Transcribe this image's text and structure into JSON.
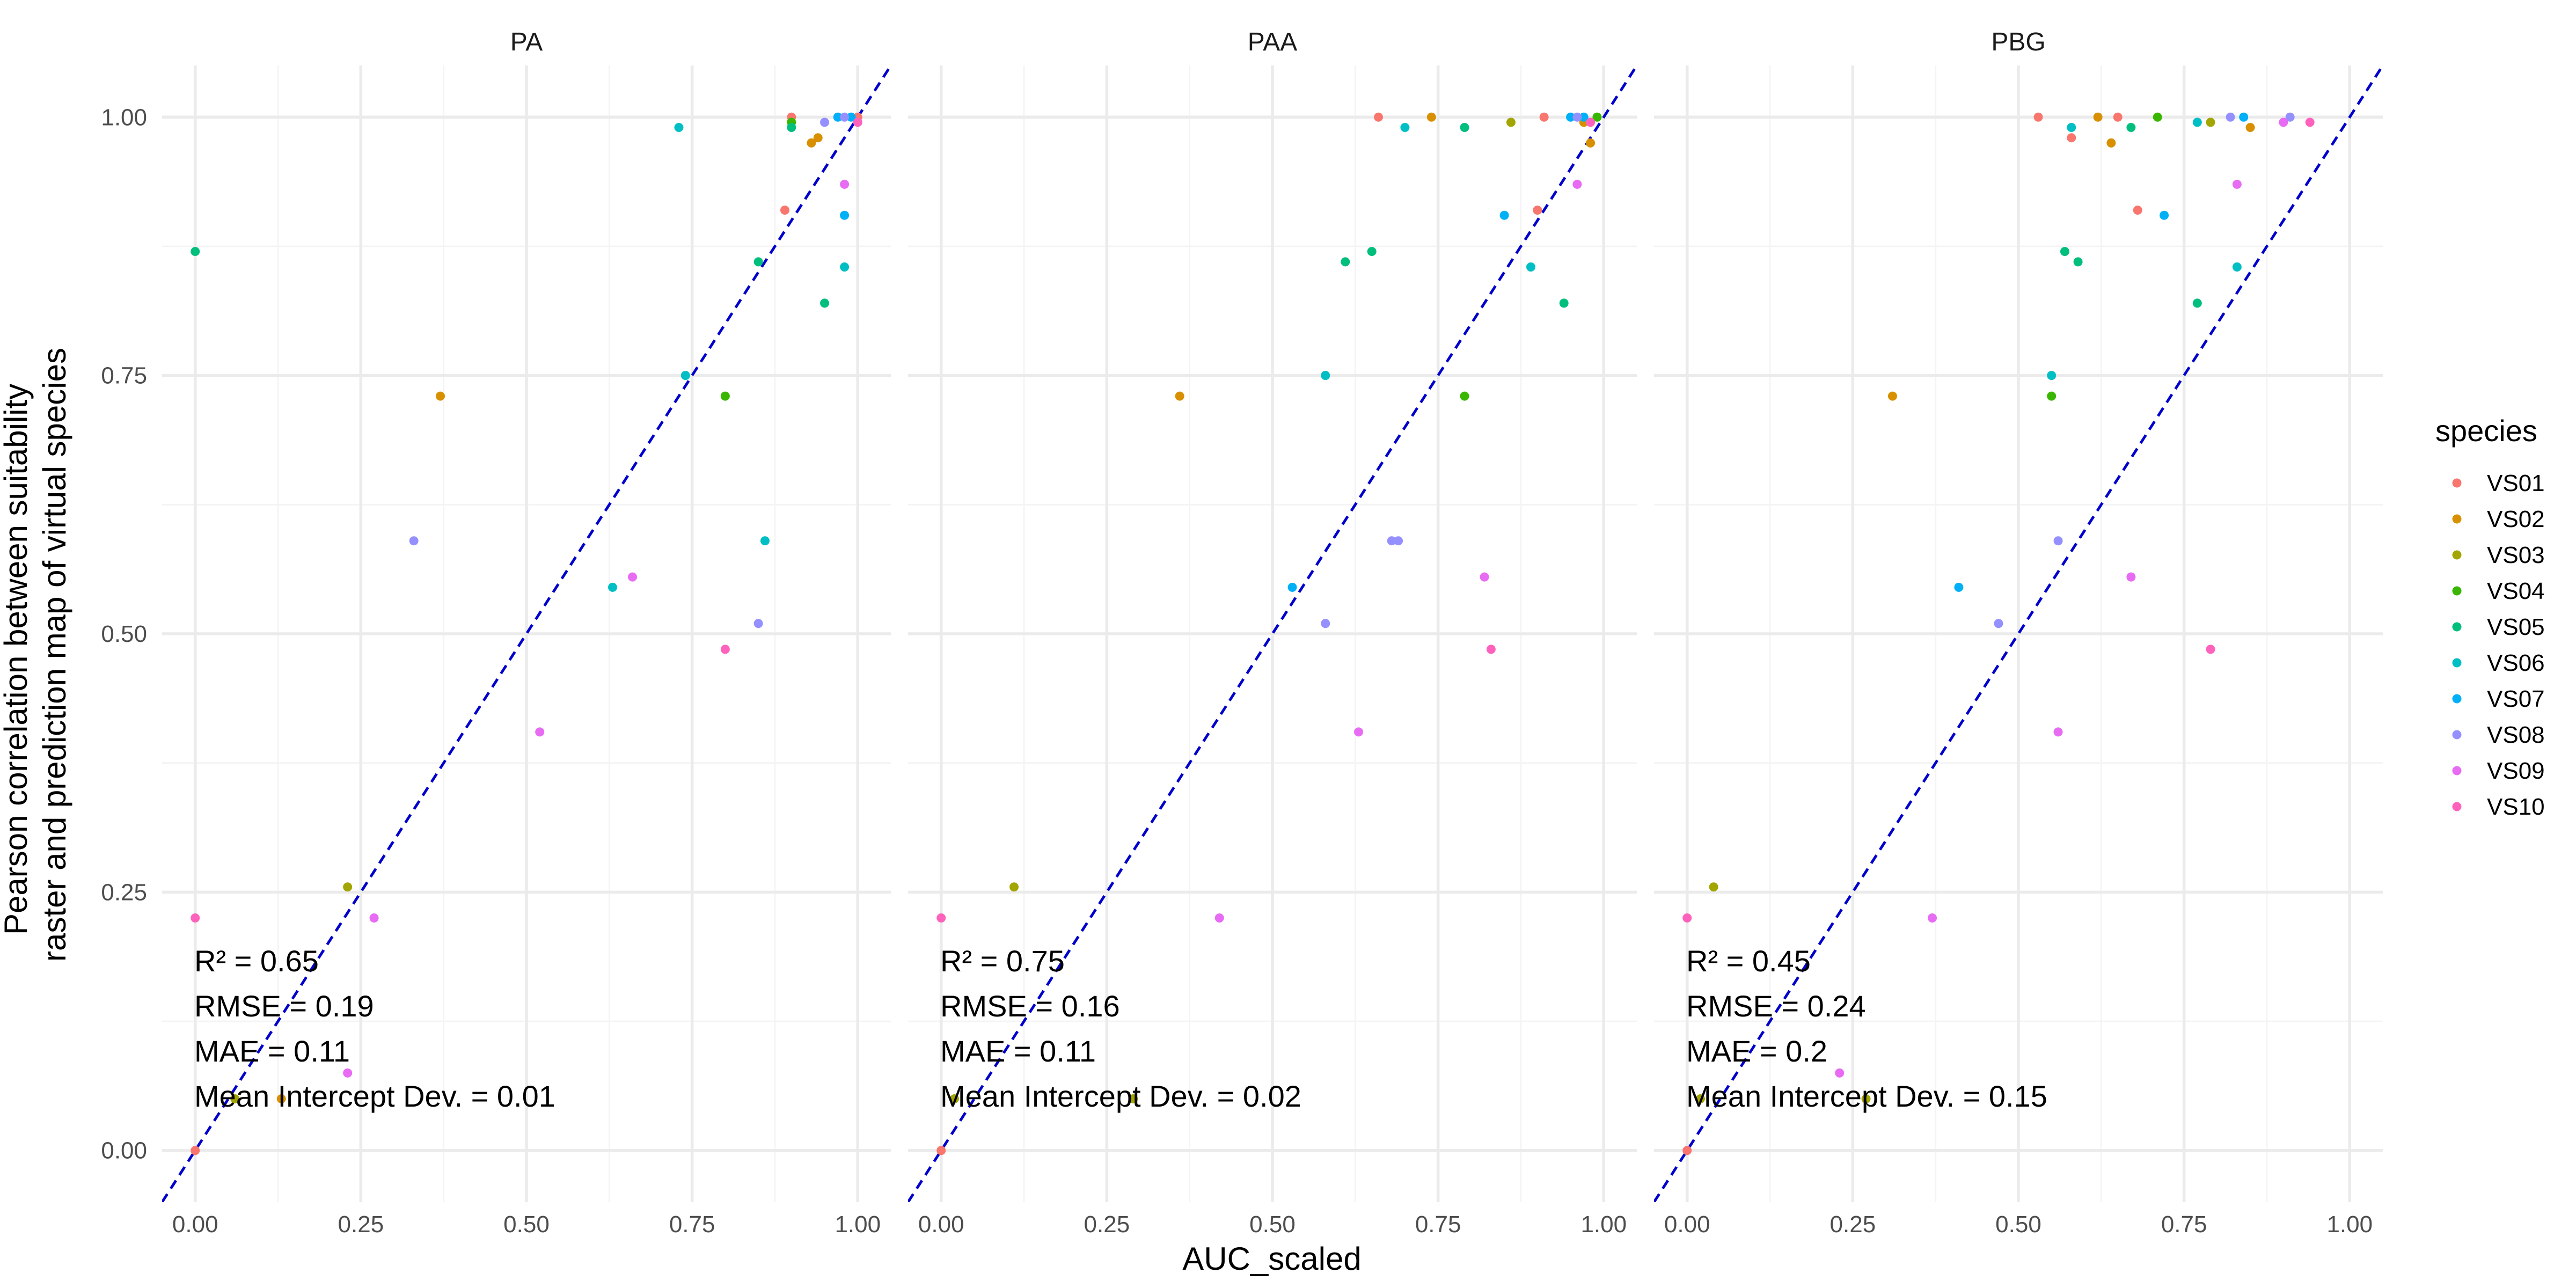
{
  "chart_data": {
    "type": "scatter",
    "xlabel": "AUC_scaled",
    "ylabel": [
      "Pearson correlation between suitability",
      "raster and prediction map of virtual species"
    ],
    "xlim": [
      -0.05,
      1.05
    ],
    "ylim": [
      -0.05,
      1.05
    ],
    "x_ticks": [
      "0.00",
      "0.25",
      "0.50",
      "0.75",
      "1.00"
    ],
    "y_ticks": [
      "0.00",
      "0.25",
      "0.50",
      "0.75",
      "1.00"
    ],
    "grid": true,
    "reference_line": "y = x",
    "legend": {
      "title": "species",
      "placement": "right",
      "entries": [
        {
          "name": "VS01",
          "color": "#F8766D"
        },
        {
          "name": "VS02",
          "color": "#D89000"
        },
        {
          "name": "VS03",
          "color": "#A3A500"
        },
        {
          "name": "VS04",
          "color": "#39B600"
        },
        {
          "name": "VS05",
          "color": "#00BF7D"
        },
        {
          "name": "VS06",
          "color": "#00BFC4"
        },
        {
          "name": "VS07",
          "color": "#00B0F6"
        },
        {
          "name": "VS08",
          "color": "#9590FF"
        },
        {
          "name": "VS09",
          "color": "#E76BF3"
        },
        {
          "name": "VS10",
          "color": "#FF62BC"
        }
      ]
    },
    "panels": [
      {
        "label": "PA",
        "stats": [
          "R² = 0.65",
          "RMSE = 0.19",
          "MAE = 0.11",
          "Mean Intercept Dev. = 0.01"
        ],
        "points": [
          {
            "s": "VS01",
            "x": 0.0,
            "y": 0.0
          },
          {
            "s": "VS01",
            "x": 0.89,
            "y": 0.91
          },
          {
            "s": "VS01",
            "x": 0.9,
            "y": 1.0
          },
          {
            "s": "VS01",
            "x": 1.0,
            "y": 1.0
          },
          {
            "s": "VS02",
            "x": 0.37,
            "y": 0.73
          },
          {
            "s": "VS02",
            "x": 0.13,
            "y": 0.05
          },
          {
            "s": "VS02",
            "x": 0.93,
            "y": 0.975
          },
          {
            "s": "VS02",
            "x": 0.94,
            "y": 0.98
          },
          {
            "s": "VS03",
            "x": 0.23,
            "y": 0.255
          },
          {
            "s": "VS03",
            "x": 0.06,
            "y": 0.05
          },
          {
            "s": "VS04",
            "x": 0.8,
            "y": 0.73
          },
          {
            "s": "VS04",
            "x": 0.9,
            "y": 0.995
          },
          {
            "s": "VS05",
            "x": 0.0,
            "y": 0.87
          },
          {
            "s": "VS05",
            "x": 0.85,
            "y": 0.86
          },
          {
            "s": "VS05",
            "x": 0.95,
            "y": 0.82
          },
          {
            "s": "VS05",
            "x": 0.9,
            "y": 0.99
          },
          {
            "s": "VS06",
            "x": 0.73,
            "y": 0.99
          },
          {
            "s": "VS06",
            "x": 0.74,
            "y": 0.75
          },
          {
            "s": "VS06",
            "x": 0.63,
            "y": 0.545
          },
          {
            "s": "VS06",
            "x": 0.86,
            "y": 0.59
          },
          {
            "s": "VS06",
            "x": 0.98,
            "y": 0.855
          },
          {
            "s": "VS07",
            "x": 0.98,
            "y": 0.905
          },
          {
            "s": "VS07",
            "x": 0.97,
            "y": 1.0
          },
          {
            "s": "VS07",
            "x": 0.99,
            "y": 1.0
          },
          {
            "s": "VS08",
            "x": 0.33,
            "y": 0.59
          },
          {
            "s": "VS08",
            "x": 0.85,
            "y": 0.51
          },
          {
            "s": "VS08",
            "x": 0.95,
            "y": 0.995
          },
          {
            "s": "VS08",
            "x": 0.98,
            "y": 1.0
          },
          {
            "s": "VS09",
            "x": 0.66,
            "y": 0.555
          },
          {
            "s": "VS09",
            "x": 0.52,
            "y": 0.405
          },
          {
            "s": "VS09",
            "x": 0.98,
            "y": 0.935
          },
          {
            "s": "VS09",
            "x": 0.27,
            "y": 0.225
          },
          {
            "s": "VS09",
            "x": 0.23,
            "y": 0.075
          },
          {
            "s": "VS10",
            "x": 0.0,
            "y": 0.225
          },
          {
            "s": "VS10",
            "x": 0.8,
            "y": 0.485
          },
          {
            "s": "VS10",
            "x": 1.0,
            "y": 0.995
          }
        ]
      },
      {
        "label": "PAA",
        "stats": [
          "R² = 0.75",
          "RMSE = 0.16",
          "MAE = 0.11",
          "Mean Intercept Dev. = 0.02"
        ],
        "points": [
          {
            "s": "VS01",
            "x": 0.0,
            "y": 0.0
          },
          {
            "s": "VS01",
            "x": 0.66,
            "y": 1.0
          },
          {
            "s": "VS01",
            "x": 0.9,
            "y": 0.91
          },
          {
            "s": "VS01",
            "x": 0.91,
            "y": 1.0
          },
          {
            "s": "VS02",
            "x": 0.36,
            "y": 0.73
          },
          {
            "s": "VS02",
            "x": 0.74,
            "y": 1.0
          },
          {
            "s": "VS02",
            "x": 0.98,
            "y": 0.975
          },
          {
            "s": "VS02",
            "x": 0.97,
            "y": 0.995
          },
          {
            "s": "VS03",
            "x": 0.11,
            "y": 0.255
          },
          {
            "s": "VS03",
            "x": 0.02,
            "y": 0.05
          },
          {
            "s": "VS03",
            "x": 0.29,
            "y": 0.05
          },
          {
            "s": "VS03",
            "x": 0.86,
            "y": 0.995
          },
          {
            "s": "VS04",
            "x": 0.79,
            "y": 0.73
          },
          {
            "s": "VS04",
            "x": 0.99,
            "y": 1.0
          },
          {
            "s": "VS05",
            "x": 0.61,
            "y": 0.86
          },
          {
            "s": "VS05",
            "x": 0.65,
            "y": 0.87
          },
          {
            "s": "VS05",
            "x": 0.94,
            "y": 0.82
          },
          {
            "s": "VS05",
            "x": 0.79,
            "y": 0.99
          },
          {
            "s": "VS06",
            "x": 0.7,
            "y": 0.99
          },
          {
            "s": "VS06",
            "x": 0.58,
            "y": 0.75
          },
          {
            "s": "VS06",
            "x": 0.89,
            "y": 0.855
          },
          {
            "s": "VS07",
            "x": 0.53,
            "y": 0.545
          },
          {
            "s": "VS07",
            "x": 0.85,
            "y": 0.905
          },
          {
            "s": "VS07",
            "x": 0.95,
            "y": 1.0
          },
          {
            "s": "VS07",
            "x": 0.97,
            "y": 1.0
          },
          {
            "s": "VS08",
            "x": 0.58,
            "y": 0.51
          },
          {
            "s": "VS08",
            "x": 0.68,
            "y": 0.59
          },
          {
            "s": "VS08",
            "x": 0.69,
            "y": 0.59
          },
          {
            "s": "VS08",
            "x": 0.96,
            "y": 1.0
          },
          {
            "s": "VS09",
            "x": 0.82,
            "y": 0.555
          },
          {
            "s": "VS09",
            "x": 0.63,
            "y": 0.405
          },
          {
            "s": "VS09",
            "x": 0.96,
            "y": 0.935
          },
          {
            "s": "VS09",
            "x": 0.42,
            "y": 0.225
          },
          {
            "s": "VS10",
            "x": 0.0,
            "y": 0.225
          },
          {
            "s": "VS10",
            "x": 0.83,
            "y": 0.485
          },
          {
            "s": "VS10",
            "x": 0.98,
            "y": 0.995
          }
        ]
      },
      {
        "label": "PBG",
        "stats": [
          "R² = 0.45",
          "RMSE = 0.24",
          "MAE = 0.2",
          "Mean Intercept Dev. = 0.15"
        ],
        "points": [
          {
            "s": "VS01",
            "x": 0.0,
            "y": 0.0
          },
          {
            "s": "VS01",
            "x": 0.53,
            "y": 1.0
          },
          {
            "s": "VS01",
            "x": 0.58,
            "y": 0.98
          },
          {
            "s": "VS01",
            "x": 0.68,
            "y": 0.91
          },
          {
            "s": "VS01",
            "x": 0.65,
            "y": 1.0
          },
          {
            "s": "VS02",
            "x": 0.31,
            "y": 0.73
          },
          {
            "s": "VS02",
            "x": 0.62,
            "y": 1.0
          },
          {
            "s": "VS02",
            "x": 0.64,
            "y": 0.975
          },
          {
            "s": "VS02",
            "x": 0.85,
            "y": 0.99
          },
          {
            "s": "VS03",
            "x": 0.04,
            "y": 0.255
          },
          {
            "s": "VS03",
            "x": 0.02,
            "y": 0.05
          },
          {
            "s": "VS03",
            "x": 0.27,
            "y": 0.05
          },
          {
            "s": "VS03",
            "x": 0.79,
            "y": 0.995
          },
          {
            "s": "VS04",
            "x": 0.55,
            "y": 0.73
          },
          {
            "s": "VS04",
            "x": 0.71,
            "y": 1.0
          },
          {
            "s": "VS05",
            "x": 0.57,
            "y": 0.87
          },
          {
            "s": "VS05",
            "x": 0.59,
            "y": 0.86
          },
          {
            "s": "VS05",
            "x": 0.77,
            "y": 0.82
          },
          {
            "s": "VS05",
            "x": 0.67,
            "y": 0.99
          },
          {
            "s": "VS06",
            "x": 0.58,
            "y": 0.99
          },
          {
            "s": "VS06",
            "x": 0.55,
            "y": 0.75
          },
          {
            "s": "VS06",
            "x": 0.83,
            "y": 0.855
          },
          {
            "s": "VS06",
            "x": 0.77,
            "y": 0.995
          },
          {
            "s": "VS07",
            "x": 0.41,
            "y": 0.545
          },
          {
            "s": "VS07",
            "x": 0.72,
            "y": 0.905
          },
          {
            "s": "VS07",
            "x": 0.84,
            "y": 1.0
          },
          {
            "s": "VS08",
            "x": 0.47,
            "y": 0.51
          },
          {
            "s": "VS08",
            "x": 0.56,
            "y": 0.59
          },
          {
            "s": "VS08",
            "x": 0.82,
            "y": 1.0
          },
          {
            "s": "VS08",
            "x": 0.91,
            "y": 1.0
          },
          {
            "s": "VS09",
            "x": 0.67,
            "y": 0.555
          },
          {
            "s": "VS09",
            "x": 0.56,
            "y": 0.405
          },
          {
            "s": "VS09",
            "x": 0.83,
            "y": 0.935
          },
          {
            "s": "VS09",
            "x": 0.37,
            "y": 0.225
          },
          {
            "s": "VS09",
            "x": 0.23,
            "y": 0.075
          },
          {
            "s": "VS09",
            "x": 0.9,
            "y": 0.995
          },
          {
            "s": "VS10",
            "x": 0.0,
            "y": 0.225
          },
          {
            "s": "VS10",
            "x": 0.79,
            "y": 0.485
          },
          {
            "s": "VS10",
            "x": 0.94,
            "y": 0.995
          }
        ]
      }
    ]
  }
}
